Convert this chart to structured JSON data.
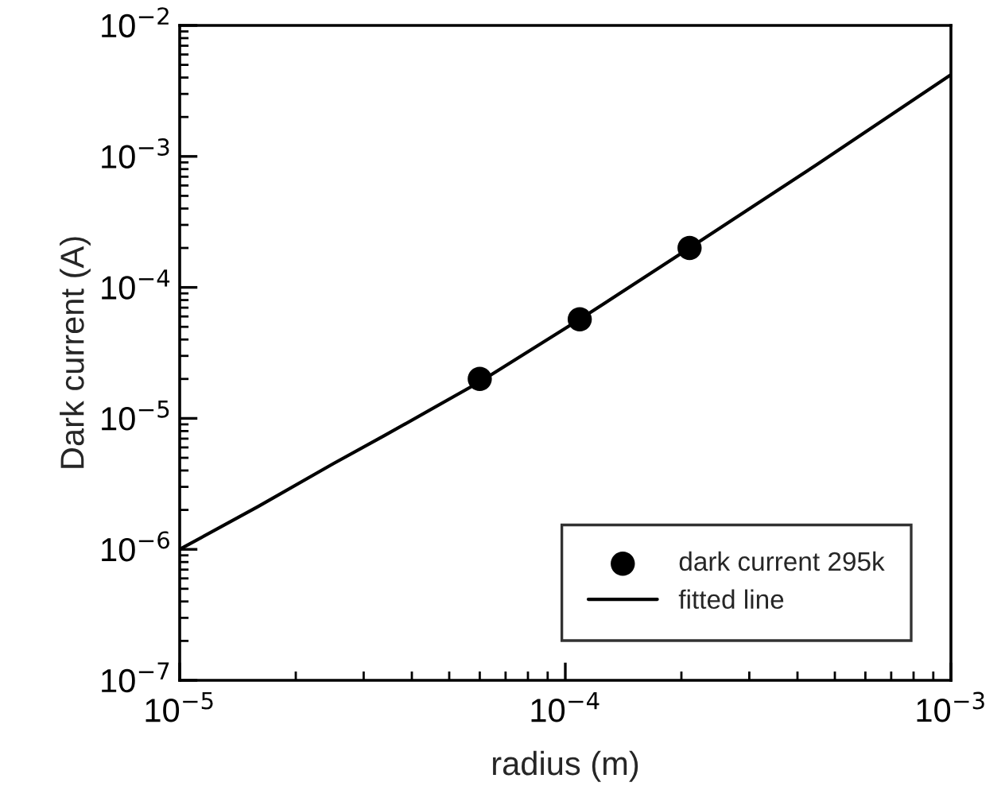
{
  "chart_data": {
    "type": "scatter",
    "xlabel": "radius (m)",
    "ylabel": "Dark current (A)",
    "log": "xy",
    "xlim": [
      1e-05,
      0.001
    ],
    "ylim": [
      1e-07,
      0.01
    ],
    "xticks": [
      {
        "value": 1e-05,
        "label": "10$^{−5}$"
      },
      {
        "value": 0.0001,
        "label": "10$^{−4}$"
      },
      {
        "value": 0.001,
        "label": "10$^{−3}$"
      }
    ],
    "yticks": [
      {
        "value": 1e-07,
        "label": "10$^{−7}$"
      },
      {
        "value": 1e-06,
        "label": "10$^{−6}$"
      },
      {
        "value": 1e-05,
        "label": "10$^{−5}$"
      },
      {
        "value": 0.0001,
        "label": "10$^{−4}$"
      },
      {
        "value": 0.001,
        "label": "10$^{−3}$"
      },
      {
        "value": 0.01,
        "label": "10$^{−2}$"
      }
    ],
    "legend": "bottom right",
    "grid": false,
    "series": [
      {
        "name": "dark current 295k",
        "marker": "circle",
        "color": "#000000",
        "x": [
          6e-05,
          0.000109,
          0.00021
        ],
        "values": [
          2e-05,
          5.7e-05,
          0.0002
        ]
      },
      {
        "name": "fitted line",
        "type": "line",
        "marker": "none",
        "line_style": "solid",
        "color": "#000000",
        "x": [
          1e-05,
          1.6e-05,
          2.5e-05,
          3.4e-05,
          6e-05,
          0.000109,
          0.00021,
          0.00045,
          0.001
        ],
        "values": [
          1e-06,
          2.13e-06,
          4.5e-06,
          7.4e-06,
          1.9e-05,
          5.7e-05,
          0.0002,
          0.00087,
          0.0042
        ]
      }
    ]
  }
}
